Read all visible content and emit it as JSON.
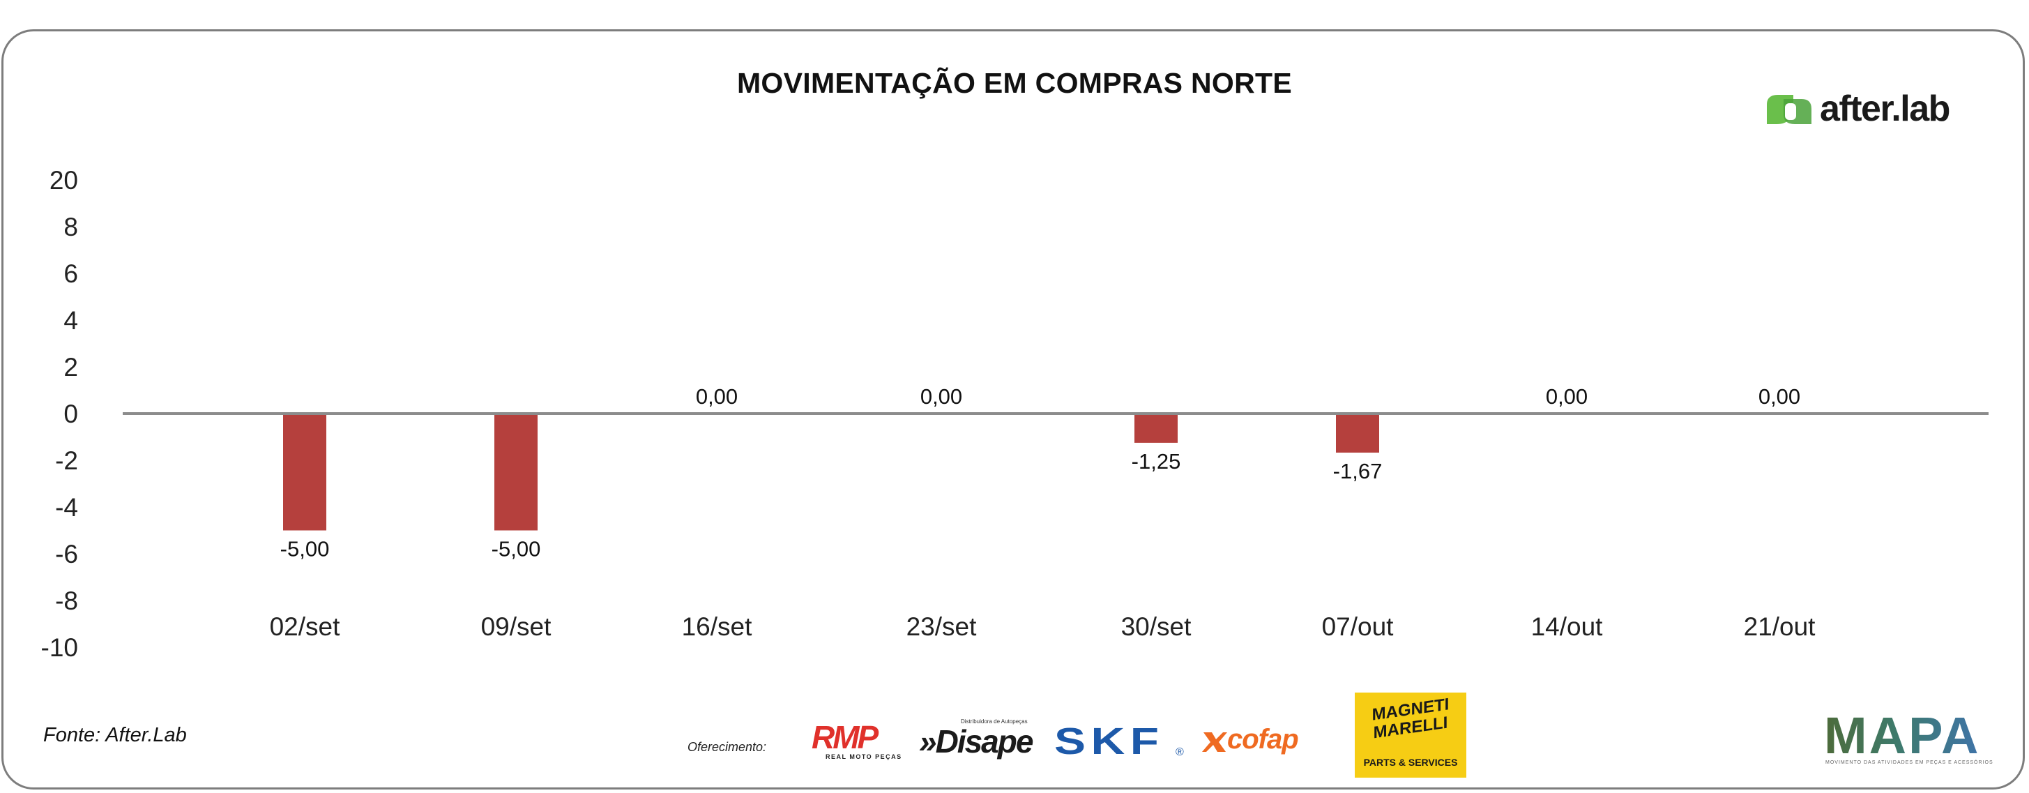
{
  "title": "MOVIMENTAÇÃO EM COMPRAS NORTE",
  "brand": {
    "name": "after.lab",
    "color": "#6abf4b"
  },
  "source": "Fonte: After.Lab",
  "sponsors": {
    "label": "Oferecimento:",
    "rmp": {
      "name": "RMP",
      "tagline": "REAL MOTO PEÇAS"
    },
    "disape": {
      "name": "»Disape",
      "tagline": "Distribuidora de Autopeças"
    },
    "skf": {
      "name": "SKF",
      "mark": "®"
    },
    "cofap": {
      "name": "cofap"
    },
    "magneti": {
      "name": "MAGNETI MARELLI",
      "tagline": "PARTS & SERVICES"
    }
  },
  "mapa": {
    "name": "MAPA",
    "tagline": "MOVIMENTO DAS ATIVIDADES EM PEÇAS E ACESSÓRIOS"
  },
  "chart_data": {
    "type": "bar",
    "title": "MOVIMENTAÇÃO EM COMPRAS NORTE",
    "categories": [
      "02/set",
      "09/set",
      "16/set",
      "23/set",
      "30/set",
      "07/out",
      "14/out",
      "21/out"
    ],
    "values": [
      -5.0,
      -5.0,
      0.0,
      0.0,
      -1.25,
      -1.67,
      0.0,
      0.0
    ],
    "value_labels": [
      "-5,00",
      "-5,00",
      "0,00",
      "0,00",
      "-1,25",
      "-1,67",
      "0,00",
      "0,00"
    ],
    "y_ticks": [
      20,
      8,
      6,
      4,
      2,
      0,
      -2,
      -4,
      -6,
      -8,
      -10
    ],
    "y_tick_labels": [
      "20",
      "8",
      "6",
      "4",
      "2",
      "0",
      "-2",
      "-4",
      "-6",
      "-8",
      "-10"
    ],
    "xlabel": "",
    "ylabel": "",
    "grid": false,
    "legend": false,
    "bar_color": "#b5403d",
    "axis_color": "#8c8c8c"
  }
}
